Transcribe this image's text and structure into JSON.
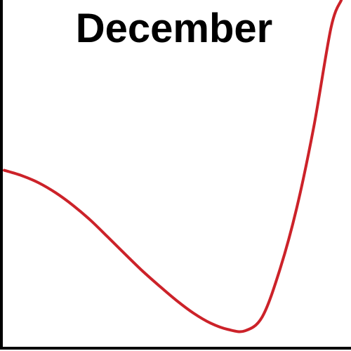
{
  "chart_data": {
    "type": "line",
    "title": "December",
    "xlabel": "",
    "ylabel": "",
    "xlim": [
      0,
      100
    ],
    "ylim": [
      0,
      100
    ],
    "grid": false,
    "series": [
      {
        "color": "#cc2229",
        "x": [
          0,
          5,
          10,
          15,
          20,
          25,
          30,
          35,
          40,
          45,
          50,
          55,
          60,
          65,
          70,
          75,
          80,
          85,
          90,
          95,
          98
        ],
        "y": [
          51,
          49.5,
          47.4,
          44.5,
          40.9,
          36.7,
          31.9,
          27,
          22.2,
          17.8,
          13.6,
          9.9,
          7,
          5.2,
          4.8,
          8.8,
          22,
          40,
          63.5,
          92,
          100
        ]
      }
    ]
  },
  "colors": {
    "axis": "#000000",
    "background": "#ffffff"
  }
}
